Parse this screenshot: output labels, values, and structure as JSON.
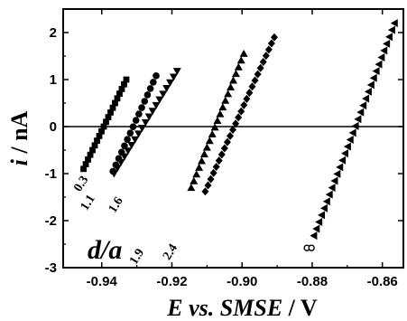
{
  "chart_data": {
    "type": "scatter",
    "title": "",
    "xlabel": {
      "italic": "E vs. SMSE",
      "plain": " / V"
    },
    "ylabel": {
      "italic": "i",
      "plain": " / nA"
    },
    "xlim": [
      -0.951,
      -0.854
    ],
    "ylim": [
      -3,
      2.5
    ],
    "x_ticks": [
      -0.94,
      -0.92,
      -0.9,
      -0.88,
      -0.86
    ],
    "x_tick_labels": [
      "-0.94",
      "-0.92",
      "-0.90",
      "-0.88",
      "-0.86"
    ],
    "y_ticks": [
      -3,
      -2,
      -1,
      0,
      1,
      2
    ],
    "y_tick_labels": [
      "-3",
      "-2",
      "-1",
      "0",
      "1",
      "2"
    ],
    "zero_line": 0,
    "grid": false,
    "corner_label": "d/a",
    "series": [
      {
        "name": "0.3",
        "marker": "square",
        "label_pos": [
          -0.9462,
          -1.4
        ],
        "start": [
          -0.9452,
          -0.9
        ],
        "end": [
          -0.933,
          1.0
        ],
        "n": 20
      },
      {
        "name": "1.1",
        "marker": "circle",
        "label_pos": [
          -0.9443,
          -1.8
        ],
        "start": [
          -0.9368,
          -0.95
        ],
        "end": [
          -0.9245,
          1.08
        ],
        "n": 16
      },
      {
        "name": "1.6",
        "marker": "triangle-down",
        "label_pos": [
          -0.9363,
          -1.85
        ],
        "start": [
          -0.9365,
          -1.0
        ],
        "end": [
          -0.9185,
          1.18
        ],
        "n": 19
      },
      {
        "name": "1.9",
        "marker": "triangle-up",
        "label_pos": [
          -0.9303,
          -2.95
        ],
        "start": [
          -0.9145,
          -1.3
        ],
        "end": [
          -0.8995,
          1.55
        ],
        "n": 21
      },
      {
        "name": "2.4",
        "marker": "diamond",
        "label_pos": [
          -0.9208,
          -2.85
        ],
        "start": [
          -0.9105,
          -1.38
        ],
        "end": [
          -0.8908,
          1.9
        ],
        "n": 26
      },
      {
        "name": "",
        "marker": "triangle-left",
        "label_pos": null,
        "start": [
          -0.8795,
          -2.32
        ],
        "end": [
          -0.8565,
          2.2
        ],
        "n": 32
      }
    ],
    "extra_points": [
      {
        "marker": "open-circle",
        "x": -0.8815,
        "y": -2.58
      },
      {
        "marker": "open-circle",
        "x": -0.8802,
        "y": -2.58
      }
    ]
  }
}
